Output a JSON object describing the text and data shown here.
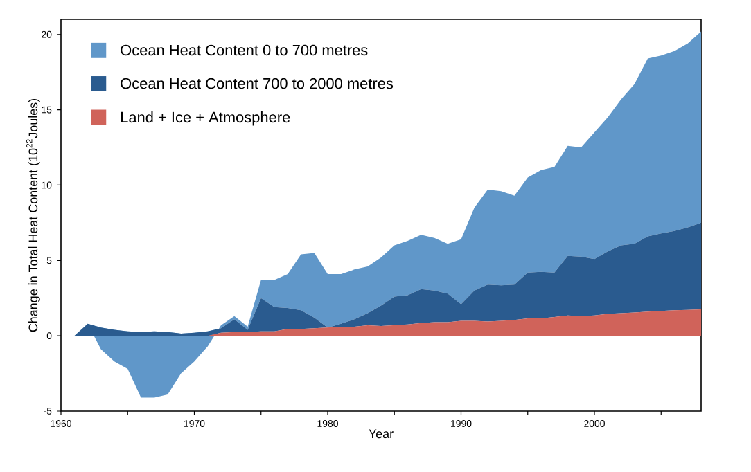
{
  "chart_data": {
    "type": "area",
    "stacked": true,
    "xlabel": "Year",
    "ylabel": "Change in Total Heat Content (10$^{22}$Joules)",
    "x": [
      1961,
      1962,
      1963,
      1964,
      1965,
      1966,
      1967,
      1968,
      1969,
      1970,
      1971,
      1972,
      1973,
      1974,
      1975,
      1976,
      1977,
      1978,
      1979,
      1980,
      1981,
      1982,
      1983,
      1984,
      1985,
      1986,
      1987,
      1988,
      1989,
      1990,
      1991,
      1992,
      1993,
      1994,
      1995,
      1996,
      1997,
      1998,
      1999,
      2000,
      2001,
      2002,
      2003,
      2004,
      2005,
      2006,
      2007,
      2008
    ],
    "series": [
      {
        "name": "Land + Ice + Atmosphere",
        "color": "#d0635a",
        "values": [
          0,
          0,
          0,
          0,
          0,
          0,
          0,
          0,
          0,
          0,
          0,
          0.2,
          0.25,
          0.25,
          0.3,
          0.3,
          0.45,
          0.45,
          0.5,
          0.55,
          0.6,
          0.6,
          0.7,
          0.65,
          0.7,
          0.75,
          0.85,
          0.9,
          0.9,
          1.0,
          1.0,
          0.95,
          1.0,
          1.05,
          1.15,
          1.15,
          1.25,
          1.35,
          1.3,
          1.35,
          1.45,
          1.5,
          1.55,
          1.6,
          1.65,
          1.7,
          1.72,
          1.75
        ]
      },
      {
        "name": "Ocean Heat Content 700 to 2000 metres",
        "color": "#2a5b8f",
        "values": [
          0,
          0.8,
          0.55,
          0.4,
          0.3,
          0.25,
          0.3,
          0.25,
          0.15,
          0.2,
          0.3,
          0.3,
          0.85,
          0.15,
          2.2,
          1.6,
          1.4,
          1.25,
          0.7,
          0,
          0.2,
          0.5,
          0.8,
          1.35,
          1.9,
          1.95,
          2.25,
          2.1,
          1.9,
          1.1,
          2.0,
          2.45,
          2.35,
          2.35,
          3.05,
          3.1,
          2.95,
          3.95,
          3.95,
          3.75,
          4.15,
          4.5,
          4.55,
          5.0,
          5.15,
          5.25,
          5.48,
          5.75
        ]
      },
      {
        "name": "Ocean Heat Content 0 to 700 metres",
        "color": "#6097c9",
        "values": [
          0,
          0,
          -1.45,
          -2.1,
          -2.5,
          -4.35,
          -4.4,
          -4.15,
          -2.65,
          -1.9,
          -1.0,
          0.2,
          0.2,
          0.2,
          1.2,
          1.8,
          2.25,
          3.7,
          4.3,
          3.55,
          3.3,
          3.3,
          3.1,
          3.2,
          3.4,
          3.6,
          3.6,
          3.5,
          3.3,
          4.3,
          5.5,
          6.3,
          6.25,
          5.9,
          6.3,
          6.75,
          7.0,
          7.3,
          7.25,
          8.4,
          8.9,
          9.7,
          10.6,
          11.8,
          11.8,
          11.95,
          12.2,
          12.7
        ]
      }
    ],
    "xlim": [
      1960,
      2008
    ],
    "ylim": [
      -5,
      21
    ],
    "xticks": [
      1960,
      {
        "value": 1965,
        "label": null
      },
      1970,
      {
        "value": 1975,
        "label": null
      },
      1980,
      {
        "value": 1985,
        "label": null
      },
      1990,
      {
        "value": 1995,
        "label": null
      },
      2000,
      {
        "value": 2005,
        "label": null
      }
    ],
    "yticks": [
      -5,
      0,
      5,
      10,
      15,
      20
    ],
    "legend": "top left"
  }
}
